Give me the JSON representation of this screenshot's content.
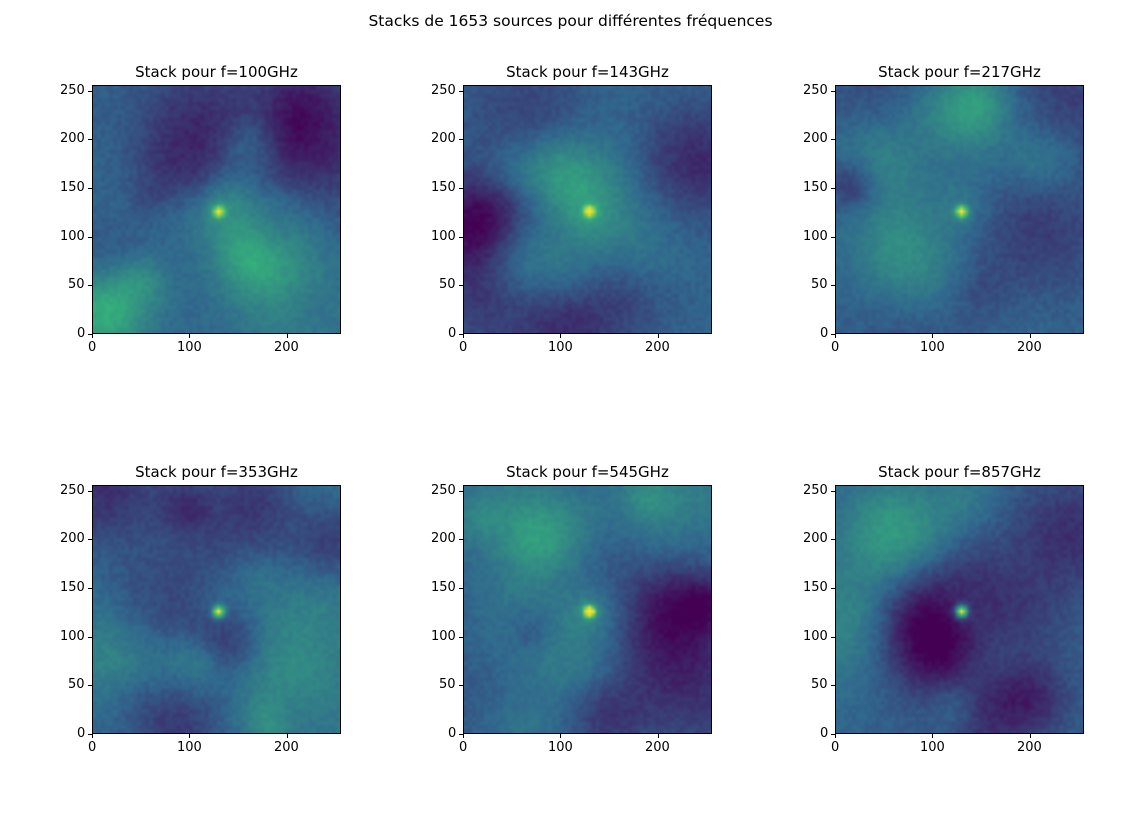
{
  "figure": {
    "title": "Stacks de 1653 sources pour différentes fréquences"
  },
  "colors": {
    "colormap": "viridis",
    "low": "#440154",
    "mid": "#31688e",
    "high": "#35b779",
    "peak": "#fde725"
  },
  "chart_data": [
    {
      "type": "heatmap",
      "title": "Stack pour f=100GHz",
      "xlim": [
        0,
        256
      ],
      "ylim": [
        0,
        256
      ],
      "x_ticks": [
        "0",
        "100",
        "200"
      ],
      "y_ticks": [
        "0",
        "50",
        "100",
        "150",
        "200",
        "250"
      ],
      "peak": [
        128,
        128
      ],
      "peak_strength": 0.55
    },
    {
      "type": "heatmap",
      "title": "Stack pour f=143GHz",
      "xlim": [
        0,
        256
      ],
      "ylim": [
        0,
        256
      ],
      "x_ticks": [
        "0",
        "100",
        "200"
      ],
      "y_ticks": [
        "0",
        "50",
        "100",
        "150",
        "200",
        "250"
      ],
      "peak": [
        128,
        128
      ],
      "peak_strength": 0.55
    },
    {
      "type": "heatmap",
      "title": "Stack pour f=217GHz",
      "xlim": [
        0,
        256
      ],
      "ylim": [
        0,
        256
      ],
      "x_ticks": [
        "0",
        "100",
        "200"
      ],
      "y_ticks": [
        "0",
        "50",
        "100",
        "150",
        "200",
        "250"
      ],
      "peak": [
        128,
        128
      ],
      "peak_strength": 0.65
    },
    {
      "type": "heatmap",
      "title": "Stack pour f=353GHz",
      "xlim": [
        0,
        256
      ],
      "ylim": [
        0,
        256
      ],
      "x_ticks": [
        "0",
        "100",
        "200"
      ],
      "y_ticks": [
        "0",
        "50",
        "100",
        "150",
        "200",
        "250"
      ],
      "peak": [
        128,
        128
      ],
      "peak_strength": 0.7
    },
    {
      "type": "heatmap",
      "title": "Stack pour f=545GHz",
      "xlim": [
        0,
        256
      ],
      "ylim": [
        0,
        256
      ],
      "x_ticks": [
        "0",
        "100",
        "200"
      ],
      "y_ticks": [
        "0",
        "50",
        "100",
        "150",
        "200",
        "250"
      ],
      "peak": [
        128,
        128
      ],
      "peak_strength": 0.8
    },
    {
      "type": "heatmap",
      "title": "Stack pour f=857GHz",
      "xlim": [
        0,
        256
      ],
      "ylim": [
        0,
        256
      ],
      "x_ticks": [
        "0",
        "100",
        "200"
      ],
      "y_ticks": [
        "0",
        "50",
        "100",
        "150",
        "200",
        "250"
      ],
      "peak": [
        128,
        128
      ],
      "peak_strength": 0.85
    }
  ]
}
